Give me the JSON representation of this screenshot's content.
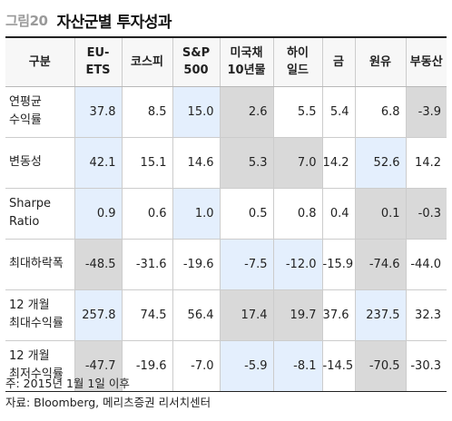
{
  "figure": {
    "label": "그림20",
    "title": "자산군별 투자성과"
  },
  "table": {
    "columns": [
      "구분",
      "EU-\nETS",
      "코스피",
      "S&P\n500",
      "미국채\n10년물",
      "하이\n일드",
      "금",
      "원유",
      "부동산"
    ],
    "rows": [
      {
        "label": "연평균\n수익률",
        "values": [
          "37.8",
          "8.5",
          "15.0",
          "2.6",
          "5.5",
          "5.4",
          "6.8",
          "-3.9"
        ]
      },
      {
        "label": "변동성",
        "values": [
          "42.1",
          "15.1",
          "14.6",
          "5.3",
          "7.0",
          "14.2",
          "52.6",
          "14.2"
        ]
      },
      {
        "label": "Sharpe\nRatio",
        "values": [
          "0.9",
          "0.6",
          "1.0",
          "0.5",
          "0.8",
          "0.4",
          "0.1",
          "-0.3"
        ]
      },
      {
        "label": "최대하락폭",
        "values": [
          "-48.5",
          "-31.6",
          "-19.6",
          "-7.5",
          "-12.0",
          "-15.9",
          "-74.6",
          "-44.0"
        ]
      },
      {
        "label": "12 개월\n최대수익률",
        "values": [
          "257.8",
          "74.5",
          "56.4",
          "17.4",
          "19.7",
          "37.6",
          "237.5",
          "32.3"
        ]
      },
      {
        "label": "12 개월\n최저수익률",
        "values": [
          "-47.7",
          "-19.6",
          "-7.0",
          "-5.9",
          "-8.1",
          "-14.5",
          "-70.5",
          "-30.3"
        ]
      }
    ],
    "highlights": {
      "blue": "#e4effd",
      "gray": "#d9d9d9",
      "cells": [
        [
          "blue",
          "none",
          "blue",
          "gray",
          "none",
          "none",
          "none",
          "gray"
        ],
        [
          "blue",
          "none",
          "none",
          "gray",
          "gray",
          "none",
          "blue",
          "none"
        ],
        [
          "blue",
          "none",
          "blue",
          "none",
          "none",
          "none",
          "gray",
          "gray"
        ],
        [
          "gray",
          "none",
          "none",
          "blue",
          "blue",
          "none",
          "gray",
          "none"
        ],
        [
          "blue",
          "none",
          "none",
          "gray",
          "gray",
          "none",
          "blue",
          "none"
        ],
        [
          "gray",
          "none",
          "none",
          "blue",
          "blue",
          "none",
          "gray",
          "none"
        ]
      ]
    }
  },
  "notes": {
    "note": "주: 2015년 1월 1일 이후",
    "source": "자료: Bloomberg, 메리츠증권 리서치센터"
  }
}
